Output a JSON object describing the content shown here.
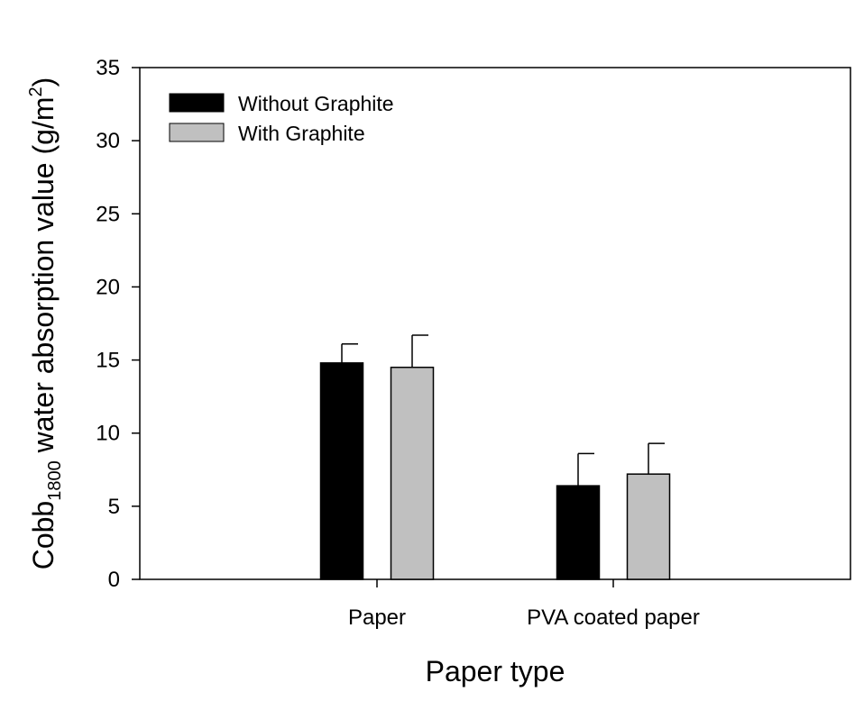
{
  "chart_data": {
    "type": "bar",
    "xlabel": "Paper type",
    "ylabel": {
      "main": "Cobb",
      "subscript": "1800",
      "middle": " water absorption value (g/m",
      "superscript": "2",
      "end": ")"
    },
    "categories": [
      "Paper",
      "PVA coated paper"
    ],
    "series": [
      {
        "name": "Without Graphite",
        "color": "#000000",
        "values": [
          14.8,
          6.4
        ],
        "errors": [
          1.3,
          2.2
        ]
      },
      {
        "name": "With Graphite",
        "color": "#c0c0c0",
        "values": [
          14.5,
          7.2
        ],
        "errors": [
          2.2,
          2.1
        ]
      }
    ],
    "ylim": [
      0,
      35
    ],
    "yticks": [
      0,
      5,
      10,
      15,
      20,
      25,
      30,
      35
    ],
    "grid": false,
    "legend_position": "top-left"
  }
}
